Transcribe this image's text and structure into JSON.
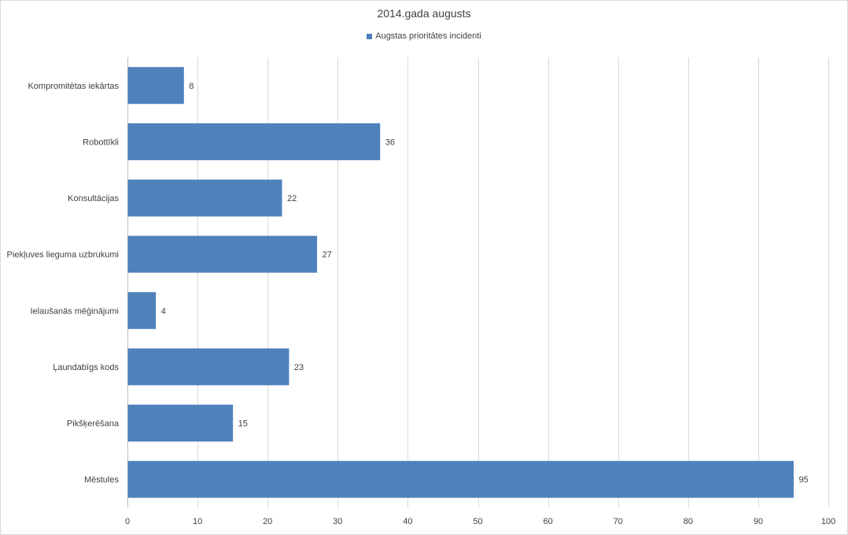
{
  "chart_data": {
    "type": "bar",
    "orientation": "horizontal",
    "title": "2014.gada augusts",
    "categories": [
      "Kompromitētas iekārtas",
      "Robottīkli",
      "Konsultācijas",
      "Piekļuves lieguma uzbrukumi",
      "Ielaušanās mēģinājumi",
      "Ļaundabīgs kods",
      "Pikšķerēšana",
      "Mēstules"
    ],
    "series": [
      {
        "name": "Augstas prioritātes incidenti",
        "values": [
          8,
          36,
          22,
          27,
          4,
          23,
          15,
          95
        ],
        "color": "#4f81bd"
      }
    ],
    "xlim": [
      0,
      100
    ],
    "xticks": [
      0,
      10,
      20,
      30,
      40,
      50,
      60,
      70,
      80,
      90,
      100
    ],
    "grid": "vertical",
    "legend_position": "top",
    "data_labels": true
  },
  "colors": {
    "bar": "#4f81bd",
    "grid": "#d9d9d9",
    "axis": "#bfbfbf",
    "text": "#404040"
  }
}
